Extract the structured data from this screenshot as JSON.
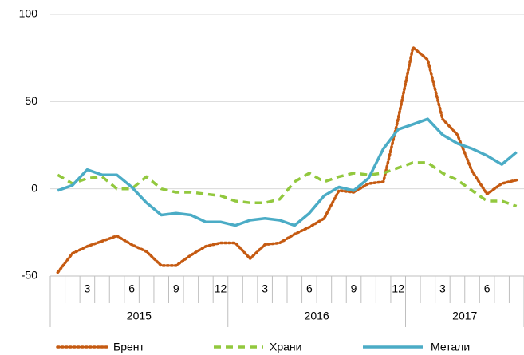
{
  "chart_data": {
    "type": "line",
    "categories": [
      null,
      null,
      "3",
      null,
      null,
      "6",
      null,
      null,
      "9",
      null,
      null,
      "12",
      null,
      null,
      "3",
      null,
      null,
      "6",
      null,
      null,
      "9",
      null,
      null,
      "12",
      null,
      null,
      "3",
      null,
      null,
      "6",
      null,
      null
    ],
    "years": [
      "2015",
      "2016",
      "2017"
    ],
    "ylim": [
      -50,
      100
    ],
    "yticks": [
      -50,
      0,
      50,
      100
    ],
    "grid": true,
    "legend": "bottom",
    "series": [
      {
        "name": "Брент",
        "color": "#c55a11",
        "style": "dotted",
        "values": [
          -48,
          -37,
          -33,
          -30,
          -27,
          -32,
          -36,
          -44,
          -44,
          -38,
          -33,
          -31,
          -31,
          -40,
          -32,
          -31,
          -26,
          -22,
          -17,
          -1,
          -2,
          3,
          4,
          40,
          81,
          74,
          40,
          31,
          10,
          -3,
          3,
          5
        ]
      },
      {
        "name": "Храни",
        "color": "#92c83e",
        "style": "dashed",
        "values": [
          8,
          3,
          6,
          7,
          0,
          0,
          7,
          0,
          -2,
          -2,
          -3,
          -4,
          -7,
          -8,
          -8,
          -6,
          4,
          9,
          4,
          7,
          9,
          8,
          9,
          12,
          15,
          15,
          9,
          5,
          -1,
          -7,
          -7,
          -10
        ]
      },
      {
        "name": "Метали",
        "color": "#4bacc6",
        "style": "solid",
        "values": [
          -1,
          2,
          11,
          8,
          8,
          1,
          -8,
          -15,
          -14,
          -15,
          -19,
          -19,
          -21,
          -18,
          -17,
          -18,
          -21,
          -14,
          -4,
          1,
          -1,
          6,
          23,
          34,
          37,
          40,
          31,
          26,
          23,
          19,
          14,
          21
        ]
      }
    ]
  }
}
